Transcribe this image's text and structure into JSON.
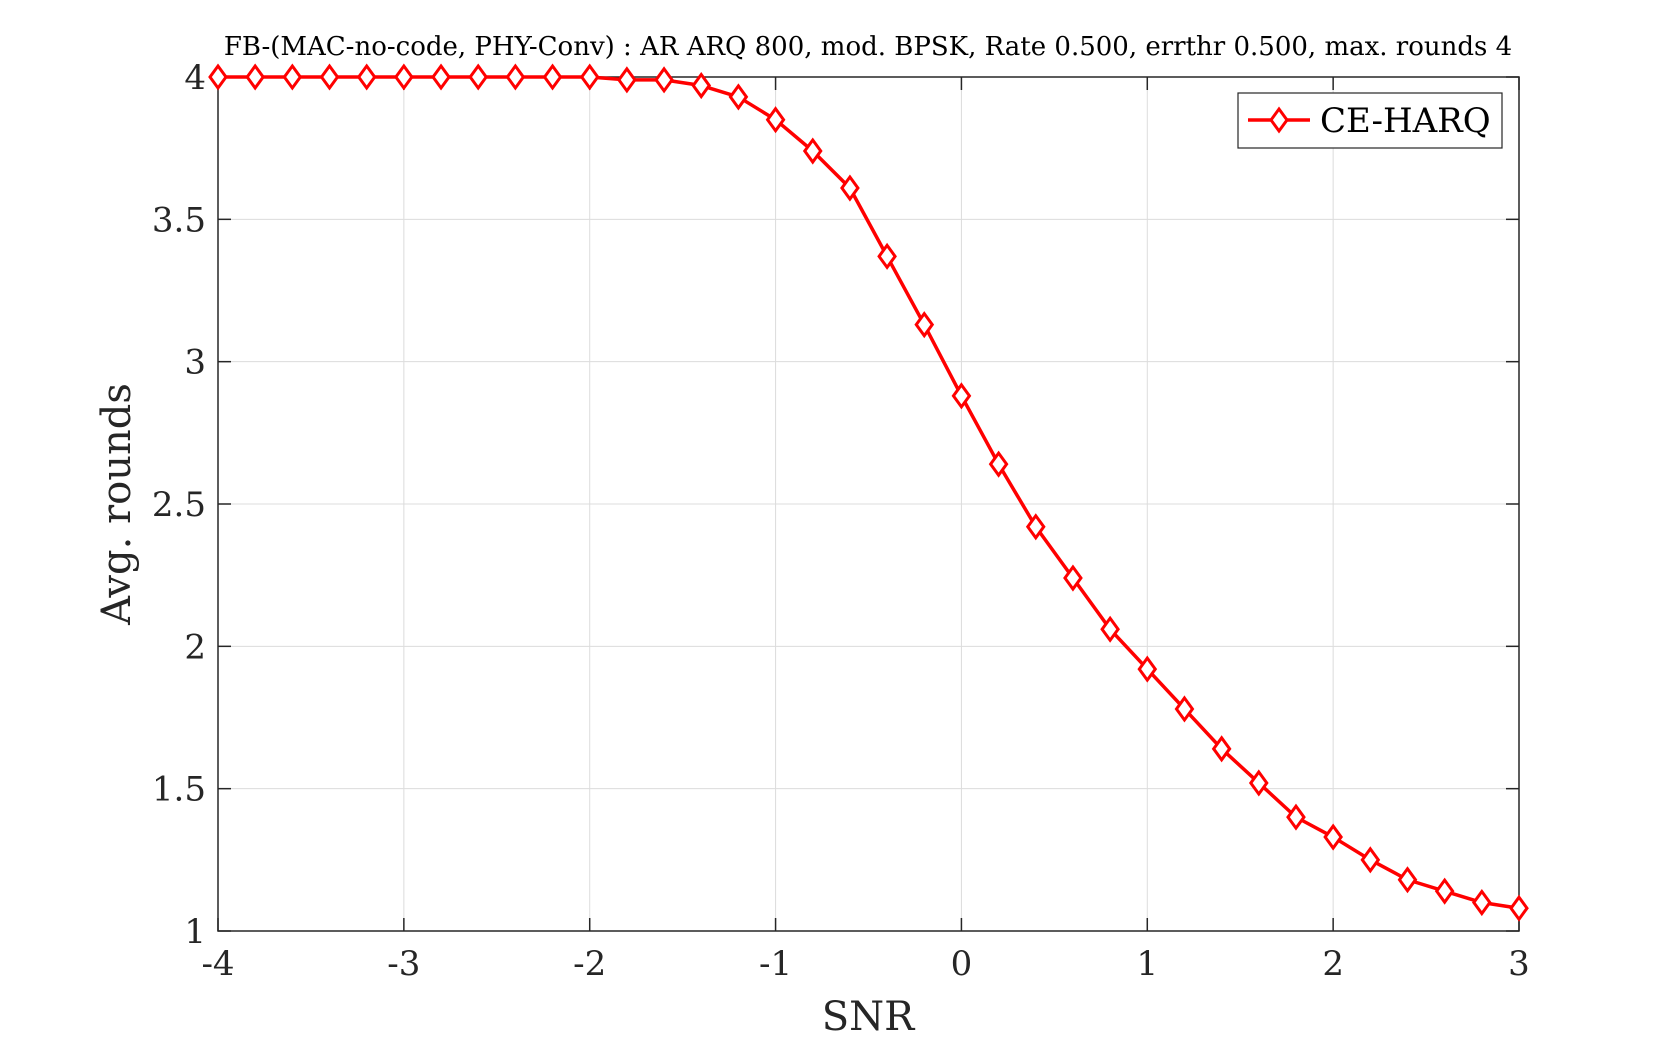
{
  "chart_data": {
    "type": "line",
    "title": "FB-(MAC-no-code, PHY-Conv) : AR ARQ 800, mod. BPSK, Rate 0.500, errthr 0.500, max. rounds 4",
    "xlabel": "SNR",
    "ylabel": "Avg. rounds",
    "xlim": [
      -4,
      3
    ],
    "ylim": [
      1,
      4
    ],
    "xticks": [
      -4,
      -3,
      -2,
      -1,
      0,
      1,
      2,
      3
    ],
    "xtick_labels": [
      "-4",
      "-3",
      "-2",
      "-1",
      "0",
      "1",
      "2",
      "3"
    ],
    "yticks": [
      1,
      1.5,
      2,
      2.5,
      3,
      3.5,
      4
    ],
    "ytick_labels": [
      "1",
      "1.5",
      "2",
      "2.5",
      "3",
      "3.5",
      "4"
    ],
    "grid": true,
    "legend_position": "top-right",
    "series": [
      {
        "name": "CE-HARQ",
        "color": "#ff0000",
        "marker": "diamond",
        "x": [
          -4,
          -3.8,
          -3.6,
          -3.4,
          -3.2,
          -3,
          -2.8,
          -2.6,
          -2.4,
          -2.2,
          -2,
          -1.8,
          -1.6,
          -1.4,
          -1.2,
          -1,
          -0.8,
          -0.6,
          -0.4,
          -0.2,
          0,
          0.2,
          0.4,
          0.6,
          0.8,
          1,
          1.2,
          1.4,
          1.6,
          1.8,
          2,
          2.2,
          2.4,
          2.6,
          2.8,
          3
        ],
        "y": [
          4,
          4,
          4,
          4,
          4,
          4,
          4,
          4,
          4,
          4,
          4,
          3.99,
          3.99,
          3.97,
          3.93,
          3.85,
          3.74,
          3.61,
          3.37,
          3.13,
          2.88,
          2.64,
          2.42,
          2.24,
          2.06,
          1.92,
          1.78,
          1.64,
          1.52,
          1.4,
          1.33,
          1.25,
          1.18,
          1.14,
          1.1,
          1.08
        ]
      }
    ]
  }
}
